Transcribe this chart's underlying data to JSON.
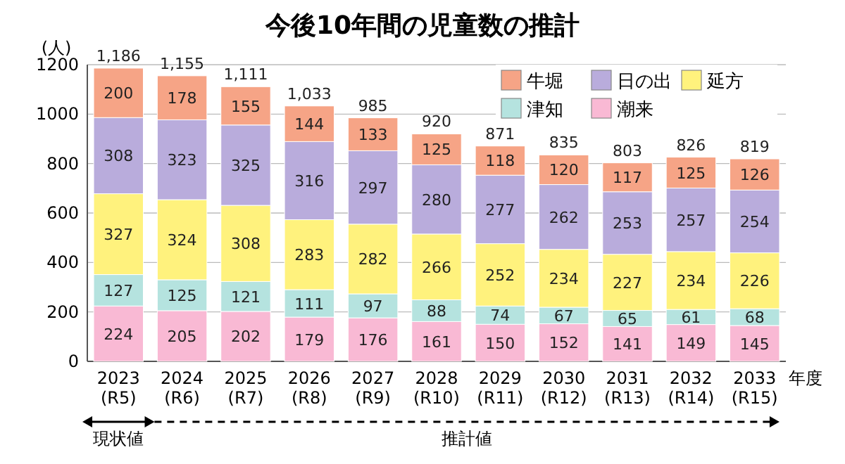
{
  "chart_data": {
    "type": "bar",
    "title": "今後10年間の児童数の推計",
    "ylabel": "(人)",
    "xlabel": "年度",
    "categories": [
      "2023\n(R5)",
      "2024\n(R6)",
      "2025\n(R7)",
      "2026\n(R8)",
      "2027\n(R9)",
      "2028\n(R10)",
      "2029\n(R11)",
      "2030\n(R12)",
      "2031\n(R13)",
      "2032\n(R14)",
      "2033\n(R15)"
    ],
    "stacked": true,
    "data_labels": true,
    "grid": "y",
    "legend": "top right",
    "ylim": [
      0,
      1200
    ],
    "yticks": [
      0,
      200,
      400,
      600,
      800,
      1000,
      1200
    ],
    "series": [
      {
        "name": "潮来",
        "color": "#f9b9d4",
        "values": [
          224,
          205,
          202,
          179,
          176,
          161,
          150,
          152,
          141,
          149,
          145
        ]
      },
      {
        "name": "津知",
        "color": "#b5e3df",
        "values": [
          127,
          125,
          121,
          111,
          97,
          88,
          74,
          67,
          65,
          61,
          68
        ]
      },
      {
        "name": "延方",
        "color": "#fff27d",
        "values": [
          327,
          324,
          308,
          283,
          282,
          266,
          252,
          234,
          227,
          234,
          226
        ]
      },
      {
        "name": "日の出",
        "color": "#b9acdc",
        "values": [
          308,
          323,
          325,
          316,
          297,
          280,
          277,
          262,
          253,
          257,
          254
        ]
      },
      {
        "name": "牛堀",
        "color": "#f6a486",
        "values": [
          200,
          178,
          155,
          144,
          133,
          125,
          118,
          120,
          117,
          125,
          126
        ]
      }
    ],
    "totals": [
      "1,186",
      "1,155",
      "1,111",
      "1,033",
      "985",
      "920",
      "871",
      "835",
      "803",
      "826",
      "819"
    ],
    "annotations": [
      "現状値",
      "推計値"
    ]
  }
}
